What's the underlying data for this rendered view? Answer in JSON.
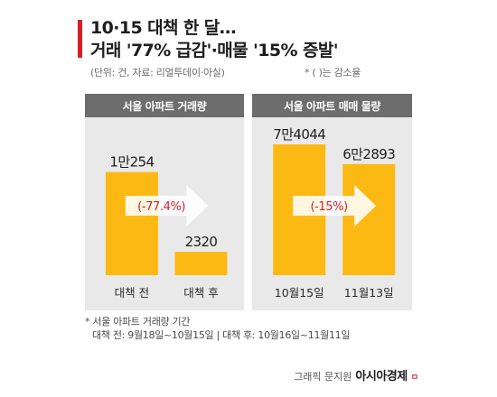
{
  "header": {
    "title_line1": "10·15 대책 한 달…",
    "title_line2": "거래 '77% 급감'·매물 '15% 증발'",
    "source": "(단위: 건, 자료: 리얼투데이·아실)",
    "legend_note": "* ( )는 감소율"
  },
  "footnote": {
    "line1": "* 서울 아파트 거래량 기간",
    "line2": "대책 전: 9월18일~10월15일 | 대책 후: 10월16일~11월11일"
  },
  "credit": {
    "text": "그래픽 문지원",
    "brand": "아시아경제",
    "brand_mark": "ㅁ"
  },
  "colors": {
    "bar": "#FDB913",
    "accent": "#D61F26",
    "panel_bg": "#E9E9E9",
    "panel_header": "#6D6D6D"
  },
  "chart_data": [
    {
      "type": "bar",
      "title": "서울 아파트 거래량",
      "categories": [
        "대책 전",
        "대책 후"
      ],
      "values": [
        10254,
        2320
      ],
      "value_labels": [
        "1만254",
        "2320"
      ],
      "change_label": "(-77.4%)",
      "ylim": [
        0,
        13000
      ]
    },
    {
      "type": "bar",
      "title": "서울 아파트 매매 물량",
      "categories": [
        "10월15일",
        "11월13일"
      ],
      "values": [
        74044,
        62893
      ],
      "value_labels": [
        "7만4044",
        "6만2893"
      ],
      "change_label": "(-15%)",
      "ylim": [
        0,
        74044
      ]
    }
  ]
}
